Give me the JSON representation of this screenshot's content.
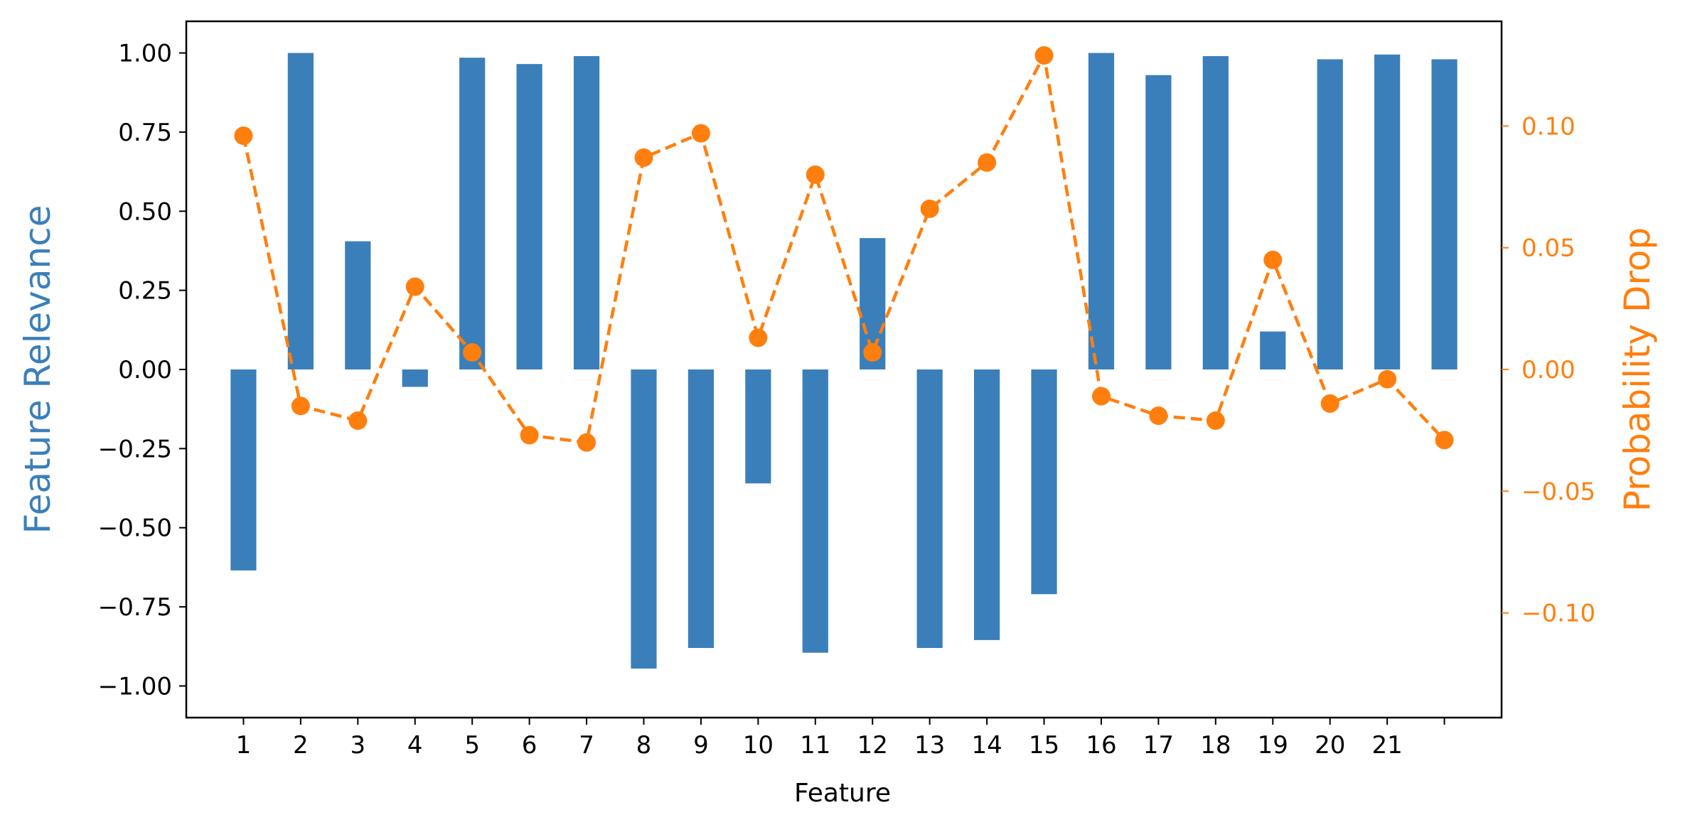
{
  "chart_data": {
    "type": "bar",
    "xlabel": "Feature",
    "categories": [
      "1",
      "2",
      "3",
      "4",
      "5",
      "6",
      "7",
      "8",
      "9",
      "10",
      "11",
      "12",
      "13",
      "14",
      "15",
      "16",
      "17",
      "18",
      "19",
      "20",
      "21",
      ""
    ],
    "series": [
      {
        "axis": "left",
        "type": "bar",
        "color": "#3a7fba",
        "values": [
          -0.635,
          1.0,
          0.405,
          -0.055,
          0.985,
          0.965,
          0.99,
          -0.945,
          -0.88,
          -0.36,
          -0.895,
          0.415,
          -0.88,
          -0.855,
          -0.71,
          1.0,
          0.93,
          0.99,
          0.12,
          0.98,
          0.995,
          0.98
        ]
      },
      {
        "axis": "right",
        "type": "line",
        "line_style": "dashed",
        "marker": "circle",
        "color": "#ff7f0e",
        "values": [
          0.096,
          -0.015,
          -0.021,
          0.034,
          0.007,
          -0.027,
          -0.03,
          0.087,
          0.097,
          0.013,
          0.08,
          0.007,
          0.066,
          0.085,
          0.129,
          -0.011,
          -0.019,
          -0.021,
          0.045,
          -0.014,
          -0.004,
          -0.029
        ]
      }
    ],
    "y_left": {
      "label": "Feature Relevance",
      "color": "#3a7fba",
      "ylim": [
        -1.1,
        1.1
      ],
      "ticks": [
        1.0,
        0.75,
        0.5,
        0.25,
        0.0,
        -0.25,
        -0.5,
        -0.75,
        -1.0
      ],
      "tick_labels": [
        "1.00",
        "0.75",
        "0.50",
        "0.25",
        "0.00",
        "−0.25",
        "−0.50",
        "−0.75",
        "−1.00"
      ]
    },
    "y_right": {
      "label": "Probability Drop",
      "color": "#ff7f0e",
      "ylim": [
        -0.143,
        0.143
      ],
      "ticks": [
        0.1,
        0.05,
        0.0,
        -0.05,
        -0.1
      ],
      "tick_labels": [
        "0.10",
        "0.05",
        "0.00",
        "−0.05",
        "−0.10"
      ]
    },
    "xlim": [
      0.0,
      23.0
    ],
    "grid": false,
    "legend": "none"
  }
}
